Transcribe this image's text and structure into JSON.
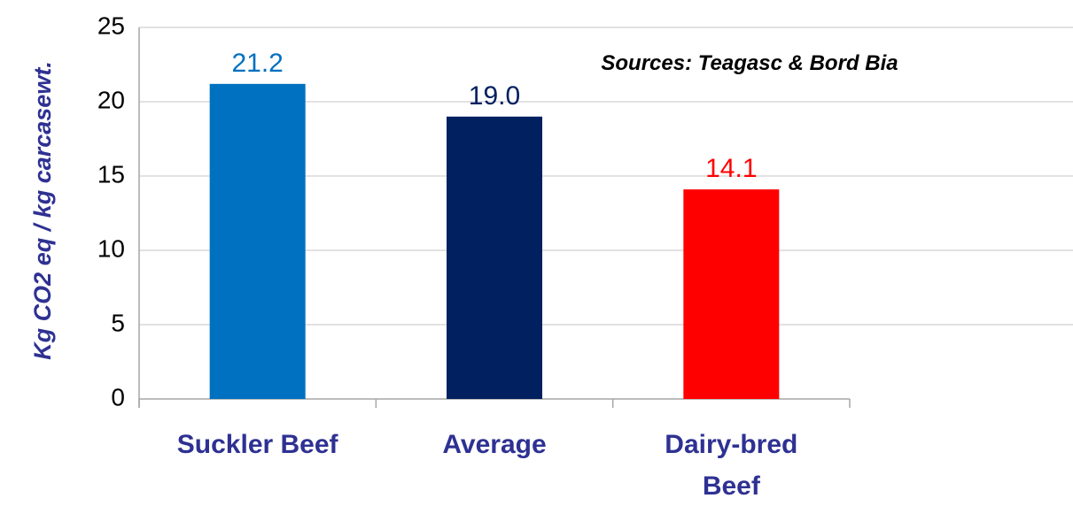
{
  "chart_data": {
    "type": "bar",
    "title": "",
    "xlabel": "",
    "ylabel": "Kg CO2 eq / kg carcasewt.",
    "ylim": [
      0,
      25
    ],
    "y_ticks": [
      0,
      5,
      10,
      15,
      20,
      25
    ],
    "grid": true,
    "legend": "none",
    "categories": [
      [
        "Suckler Beef"
      ],
      [
        "Average"
      ],
      [
        "Dairy-bred",
        "Beef"
      ]
    ],
    "values": [
      21.2,
      19.0,
      14.1
    ],
    "data_labels": [
      "21.2",
      "19.0",
      "14.1"
    ],
    "bar_colors": [
      "#0070c0",
      "#002060",
      "#ff0000"
    ],
    "category_label_color": "#2e3192",
    "axis_title_color": "#2e3192",
    "gridline_color": "#d9d9d9",
    "annotation": "Sources: Teagasc & Bord Bia"
  }
}
